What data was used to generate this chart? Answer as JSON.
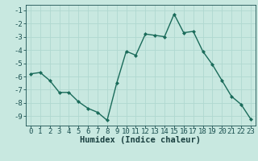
{
  "x": [
    0,
    1,
    2,
    3,
    4,
    5,
    6,
    7,
    8,
    9,
    10,
    11,
    12,
    13,
    14,
    15,
    16,
    17,
    18,
    19,
    20,
    21,
    22,
    23
  ],
  "y": [
    -5.8,
    -5.7,
    -6.3,
    -7.2,
    -7.2,
    -7.9,
    -8.4,
    -8.7,
    -9.3,
    -6.5,
    -4.1,
    -4.4,
    -2.8,
    -2.9,
    -3.0,
    -1.3,
    -2.7,
    -2.6,
    -4.1,
    -5.1,
    -6.3,
    -7.5,
    -8.1,
    -9.2
  ],
  "line_color": "#1a6b5a",
  "marker": "D",
  "markersize": 2.0,
  "linewidth": 1.0,
  "xlabel": "Humidex (Indice chaleur)",
  "xlim": [
    -0.5,
    23.5
  ],
  "ylim": [
    -9.7,
    -0.6
  ],
  "yticks": [
    -9,
    -8,
    -7,
    -6,
    -5,
    -4,
    -3,
    -2,
    -1
  ],
  "xticks": [
    0,
    1,
    2,
    3,
    4,
    5,
    6,
    7,
    8,
    9,
    10,
    11,
    12,
    13,
    14,
    15,
    16,
    17,
    18,
    19,
    20,
    21,
    22,
    23
  ],
  "bg_color": "#c8e8e0",
  "grid_color": "#b0d8d0",
  "tick_color": "#1a5050",
  "label_color": "#1a4040",
  "tick_fontsize": 6.5,
  "xlabel_fontsize": 7.5
}
